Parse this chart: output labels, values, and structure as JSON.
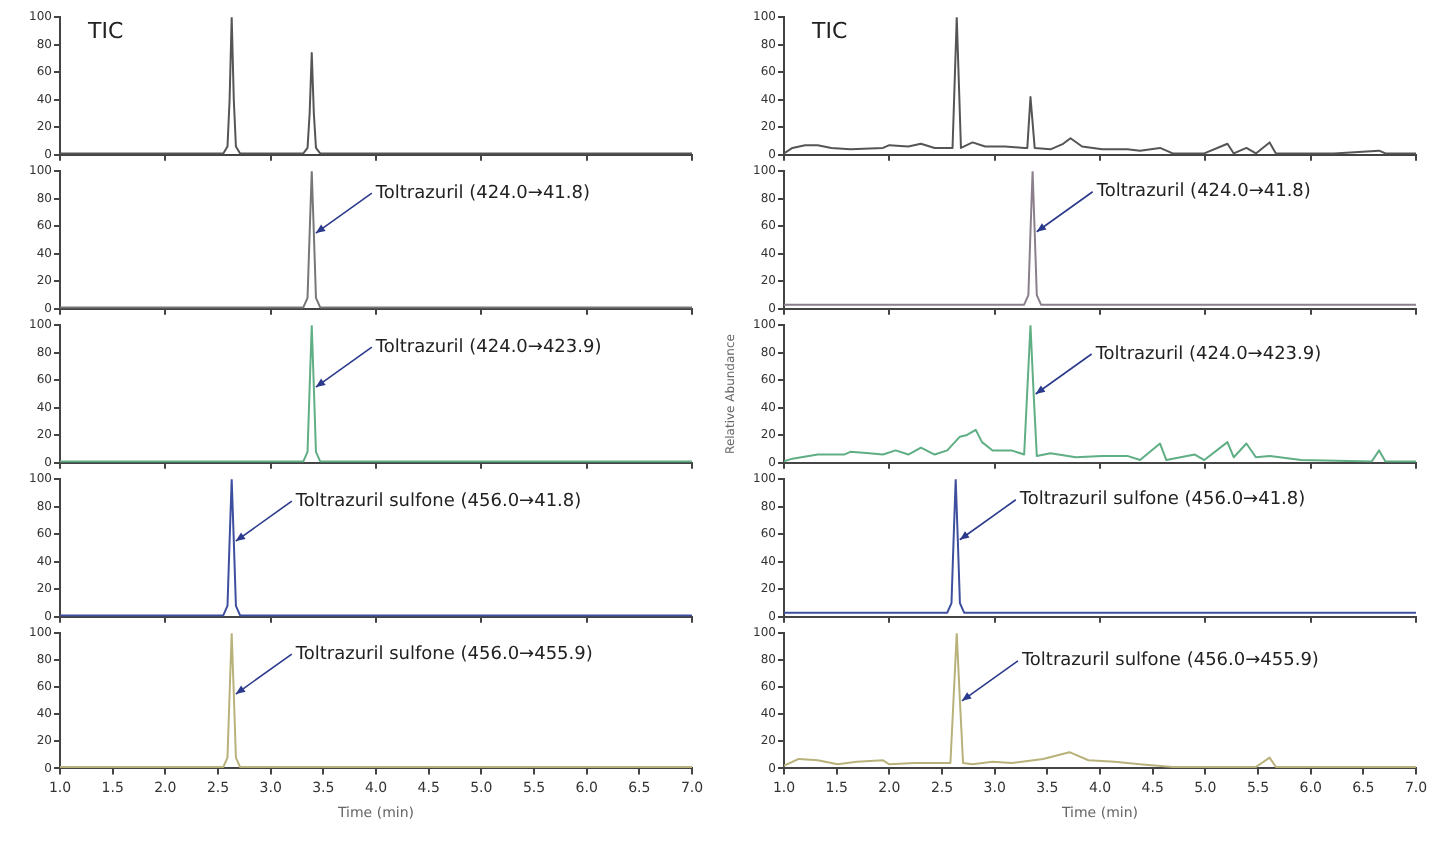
{
  "chart_data": [
    {
      "type": "line",
      "xlim": [
        1,
        7
      ],
      "ylim": [
        0,
        100
      ],
      "yticks": [
        0,
        20,
        40,
        60,
        80,
        100
      ],
      "tick_labels": "y",
      "annotations": [
        "TIC"
      ],
      "series": [
        {
          "color": "#555555",
          "x": [
            1.0,
            2.55,
            2.59,
            2.61,
            2.63,
            2.65,
            2.67,
            2.71,
            3.31,
            3.35,
            3.37,
            3.39,
            3.41,
            3.43,
            3.47,
            7.0
          ],
          "values": [
            1,
            1,
            6,
            40,
            100,
            40,
            6,
            1,
            1,
            5,
            30,
            74,
            30,
            5,
            1,
            1
          ]
        }
      ]
    },
    {
      "type": "line",
      "xlim": [
        1,
        7
      ],
      "ylim": [
        0,
        100
      ],
      "yticks": [
        0,
        20,
        40,
        60,
        80,
        100
      ],
      "tick_labels": "y",
      "annotations": [
        {
          "text": "Toltrazuril (424.0→41.8)",
          "x": 3.41,
          "y": 55
        }
      ],
      "series": [
        {
          "color": "#777777",
          "x": [
            1.0,
            3.31,
            3.35,
            3.37,
            3.39,
            3.41,
            3.43,
            3.47,
            7.0
          ],
          "values": [
            1,
            1,
            8,
            55,
            100,
            55,
            8,
            1,
            1
          ]
        }
      ]
    },
    {
      "type": "line",
      "xlim": [
        1,
        7
      ],
      "ylim": [
        0,
        100
      ],
      "yticks": [
        0,
        20,
        40,
        60,
        80,
        100
      ],
      "tick_labels": "y",
      "annotations": [
        {
          "text": "Toltrazuril (424.0→423.9)",
          "x": 3.41,
          "y": 55
        }
      ],
      "series": [
        {
          "color": "#5fae84",
          "x": [
            1.0,
            3.31,
            3.35,
            3.37,
            3.39,
            3.41,
            3.43,
            3.47,
            7.0
          ],
          "values": [
            1,
            1,
            8,
            55,
            100,
            55,
            8,
            1,
            1
          ]
        }
      ]
    },
    {
      "type": "line",
      "xlim": [
        1,
        7
      ],
      "ylim": [
        0,
        100
      ],
      "yticks": [
        0,
        20,
        40,
        60,
        80,
        100
      ],
      "tick_labels": "y",
      "annotations": [
        {
          "text": "Toltrazuril sulfone (456.0→41.8)",
          "x": 2.65,
          "y": 55
        }
      ],
      "series": [
        {
          "color": "#3d4f9e",
          "x": [
            1.0,
            2.55,
            2.59,
            2.61,
            2.63,
            2.65,
            2.67,
            2.71,
            7.0
          ],
          "values": [
            1,
            1,
            8,
            55,
            100,
            55,
            8,
            1,
            1
          ]
        }
      ]
    },
    {
      "type": "line",
      "xlim": [
        1,
        7
      ],
      "ylim": [
        0,
        100
      ],
      "yticks": [
        0,
        20,
        40,
        60,
        80,
        100
      ],
      "xticks": [
        {
          "value": 1,
          "label": "1.0"
        },
        1.5,
        {
          "value": 2,
          "label": "2.0"
        },
        2.5,
        {
          "value": 3,
          "label": "3.0"
        },
        3.5,
        {
          "value": 4,
          "label": "4.0"
        },
        4.5,
        {
          "value": 5,
          "label": "5.0"
        },
        5.5,
        {
          "value": 6,
          "label": "6.0"
        },
        6.5,
        {
          "value": 7,
          "label": "7.0"
        }
      ],
      "xlabel": "Time (min)",
      "annotations": [
        {
          "text": "Toltrazuril sulfone (456.0→455.9)",
          "x": 2.65,
          "y": 55
        }
      ],
      "series": [
        {
          "color": "#b8b27a",
          "x": [
            1.0,
            2.55,
            2.59,
            2.61,
            2.63,
            2.65,
            2.67,
            2.71,
            7.0
          ],
          "values": [
            1,
            1,
            8,
            55,
            100,
            55,
            8,
            1,
            1
          ]
        }
      ]
    },
    {
      "type": "line",
      "xlim": [
        1,
        7
      ],
      "ylim": [
        0,
        100
      ],
      "yticks": [
        0,
        20,
        40,
        60,
        80,
        100
      ],
      "tick_labels": "y",
      "annotations": [
        "TIC"
      ],
      "series": [
        {
          "color": "#555555",
          "x": [
            1.0,
            1.08,
            1.2,
            1.32,
            1.45,
            1.63,
            1.94,
            2.0,
            2.18,
            2.3,
            2.43,
            2.55,
            2.6,
            2.64,
            2.68,
            2.79,
            2.91,
            3.1,
            3.28,
            3.31,
            3.34,
            3.38,
            3.53,
            3.65,
            3.72,
            3.83,
            4.02,
            4.26,
            4.38,
            4.57,
            4.69,
            4.99,
            5.21,
            5.27,
            5.39,
            5.48,
            5.61,
            5.67,
            6.22,
            6.65,
            6.71,
            7.0
          ],
          "values": [
            1,
            5,
            7,
            7,
            5,
            4,
            5,
            7,
            6,
            8,
            5,
            5,
            5,
            100,
            5,
            9,
            6,
            6,
            5,
            5,
            42,
            5,
            4,
            8,
            12,
            6,
            4,
            4,
            3,
            5,
            1,
            1,
            8,
            1,
            5,
            1,
            9,
            1,
            1,
            3,
            1,
            1
          ]
        }
      ]
    },
    {
      "type": "line",
      "xlim": [
        1,
        7
      ],
      "ylim": [
        0,
        100
      ],
      "yticks": [
        0,
        20,
        40,
        60,
        80,
        100
      ],
      "tick_labels": "y",
      "annotations": [
        {
          "text": "Toltrazuril (424.0→41.8)",
          "x": 3.38,
          "y": 56
        }
      ],
      "series": [
        {
          "color": "#8c7f8c",
          "x": [
            1.0,
            3.28,
            3.32,
            3.34,
            3.36,
            3.38,
            3.4,
            3.44,
            7.0
          ],
          "values": [
            3,
            3,
            10,
            56,
            100,
            56,
            10,
            3,
            3
          ]
        }
      ]
    },
    {
      "type": "line",
      "xlim": [
        1,
        7
      ],
      "ylim": [
        0,
        100
      ],
      "yticks": [
        0,
        20,
        40,
        60,
        80,
        100
      ],
      "tick_labels": "y",
      "ylabel": "Relative Abundance",
      "annotations": [
        {
          "text": "Toltrazuril (424.0→423.9)",
          "x": 3.37,
          "y": 50
        }
      ],
      "series": [
        {
          "color": "#5fae84",
          "x": [
            1.0,
            1.08,
            1.32,
            1.57,
            1.63,
            1.81,
            1.94,
            2.06,
            2.18,
            2.3,
            2.43,
            2.55,
            2.67,
            2.73,
            2.82,
            2.88,
            2.98,
            3.16,
            3.28,
            3.34,
            3.37,
            3.4,
            3.53,
            3.77,
            4.02,
            4.26,
            4.38,
            4.57,
            4.63,
            4.9,
            4.99,
            5.21,
            5.27,
            5.39,
            5.48,
            5.61,
            5.91,
            6.58,
            6.65,
            6.71,
            7.0
          ],
          "values": [
            1,
            3,
            6,
            6,
            8,
            7,
            6,
            9,
            6,
            11,
            6,
            9,
            19,
            20,
            24,
            15,
            9,
            9,
            6,
            100,
            50,
            5,
            7,
            4,
            5,
            5,
            2,
            14,
            2,
            6,
            2,
            15,
            4,
            14,
            4,
            5,
            2,
            1,
            9,
            1,
            1
          ]
        }
      ]
    },
    {
      "type": "line",
      "xlim": [
        1,
        7
      ],
      "ylim": [
        0,
        100
      ],
      "yticks": [
        0,
        20,
        40,
        60,
        80,
        100
      ],
      "tick_labels": "y",
      "annotations": [
        {
          "text": "Toltrazuril sulfone (456.0→41.8)",
          "x": 2.65,
          "y": 56
        }
      ],
      "series": [
        {
          "color": "#3d4f9e",
          "x": [
            1.0,
            2.55,
            2.59,
            2.61,
            2.63,
            2.65,
            2.67,
            2.71,
            7.0
          ],
          "values": [
            3,
            3,
            10,
            56,
            100,
            56,
            10,
            3,
            3
          ]
        }
      ]
    },
    {
      "type": "line",
      "xlim": [
        1,
        7
      ],
      "ylim": [
        0,
        100
      ],
      "yticks": [
        0,
        20,
        40,
        60,
        80,
        100
      ],
      "xticks": [
        {
          "value": 1,
          "label": "1.0"
        },
        1.5,
        {
          "value": 2,
          "label": "2.0"
        },
        2.5,
        {
          "value": 3,
          "label": "3.0"
        },
        3.5,
        {
          "value": 4,
          "label": "4.0"
        },
        4.5,
        {
          "value": 5,
          "label": "5.0"
        },
        5.5,
        {
          "value": 6,
          "label": "6.0"
        },
        6.5,
        {
          "value": 7,
          "label": "7.0"
        }
      ],
      "xlabel": "Time (min)",
      "annotations": [
        {
          "text": "Toltrazuril sulfone (456.0→455.9)",
          "x": 2.67,
          "y": 50
        }
      ],
      "series": [
        {
          "color": "#b8b27a",
          "x": [
            1.0,
            1.14,
            1.32,
            1.51,
            1.69,
            1.94,
            2.0,
            2.24,
            2.58,
            2.64,
            2.67,
            2.7,
            2.79,
            2.98,
            3.16,
            3.46,
            3.71,
            3.89,
            4.14,
            4.38,
            4.69,
            5.48,
            5.61,
            5.67,
            7.0
          ],
          "values": [
            2,
            7,
            6,
            3,
            5,
            6,
            3,
            4,
            4,
            100,
            50,
            4,
            3,
            5,
            4,
            7,
            12,
            6,
            5,
            3,
            1,
            1,
            8,
            1,
            1
          ]
        }
      ]
    }
  ]
}
